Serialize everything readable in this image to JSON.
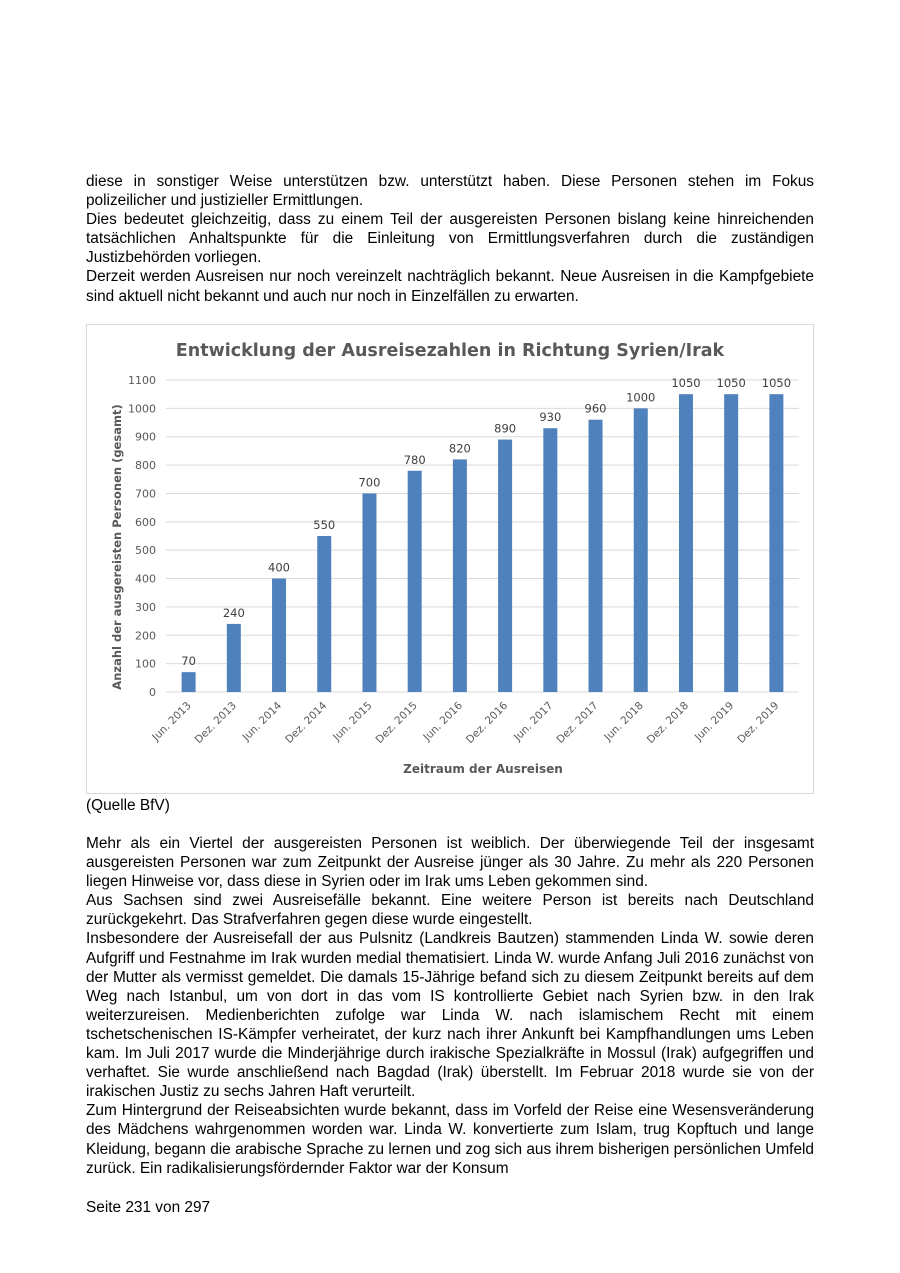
{
  "intro_paragraphs": [
    "diese in sonstiger Weise unterstützen bzw. unterstützt haben. Diese Personen stehen im Fokus polizeilicher und justizieller Ermittlungen.",
    "Dies bedeutet gleichzeitig, dass zu einem Teil der ausgereisten Personen bislang keine hinreichenden tatsächlichen Anhaltspunkte für die Einleitung von Ermittlungsverfahren durch die zuständigen Justizbehörden vorliegen.",
    "Derzeit werden Ausreisen nur noch vereinzelt nachträglich bekannt. Neue Ausreisen in die Kampfgebiete sind aktuell nicht bekannt und auch nur noch in Einzelfällen zu erwarten."
  ],
  "chart_data": {
    "type": "bar",
    "title": "Entwicklung der Ausreisezahlen in Richtung Syrien/Irak",
    "xlabel": "Zeitraum der Ausreisen",
    "ylabel": "Anzahl der ausgereisten Personen (gesamt)",
    "ylim": [
      0,
      1100
    ],
    "yticks": [
      0,
      100,
      200,
      300,
      400,
      500,
      600,
      700,
      800,
      900,
      1000,
      1100
    ],
    "categories": [
      "Jun. 2013",
      "Dez. 2013",
      "Jun. 2014",
      "Dez. 2014",
      "Jun. 2015",
      "Dez. 2015",
      "Jun. 2016",
      "Dez. 2016",
      "Jun. 2017",
      "Dez. 2017",
      "Jun. 2018",
      "Dez. 2018",
      "Jun. 2019",
      "Dez. 2019"
    ],
    "values": [
      70,
      240,
      400,
      550,
      700,
      780,
      820,
      890,
      930,
      960,
      1000,
      1050,
      1050,
      1050
    ],
    "grid": true,
    "bar_color": "#4f81bd"
  },
  "source_note": "(Quelle BfV)",
  "body_paragraphs": [
    "Mehr als ein Viertel der ausgereisten Personen ist weiblich. Der überwiegende Teil der insgesamt ausgereisten Personen war zum Zeitpunkt der Ausreise jünger als 30 Jahre. Zu mehr als 220 Personen liegen Hinweise vor, dass diese in Syrien oder im Irak ums Leben gekommen sind.",
    "Aus Sachsen sind zwei Ausreisefälle bekannt. Eine weitere Person ist bereits nach Deutschland zurückgekehrt. Das Strafverfahren gegen diese wurde eingestellt.",
    "Insbesondere der Ausreisefall der aus Pulsnitz (Landkreis Bautzen) stammenden Linda W. sowie deren Aufgriff und Festnahme im Irak wurden medial thematisiert. Linda W. wurde Anfang Juli 2016 zunächst von der Mutter als vermisst gemeldet. Die damals 15-Jährige befand sich zu diesem Zeitpunkt bereits auf dem Weg nach Istanbul, um von dort in das vom IS kontrollierte Gebiet nach Syrien bzw. in den Irak weiterzureisen. Medienberichten zufolge war Linda W. nach islamischem Recht mit einem tschetschenischen IS-Kämpfer verheiratet, der kurz nach ihrer Ankunft bei Kampfhandlungen ums Leben kam. Im Juli 2017 wurde die Minderjährige durch irakische Spezialkräfte in Mossul (Irak) aufgegriffen und verhaftet. Sie wurde anschließend nach Bagdad (Irak) überstellt. Im Februar 2018 wurde sie von der irakischen Justiz zu sechs Jahren Haft verurteilt.",
    "Zum Hintergrund der Reiseabsichten wurde bekannt, dass im Vorfeld der Reise eine Wesensveränderung des Mädchens wahrgenommen worden war. Linda W. konvertierte zum Islam, trug Kopftuch und lange Kleidung, begann die arabische Sprache zu lernen und zog sich aus ihrem bisherigen persönlichen Umfeld zurück. Ein radikalisierungsfördernder Faktor war der Konsum"
  ],
  "footer": "Seite 231 von 297"
}
